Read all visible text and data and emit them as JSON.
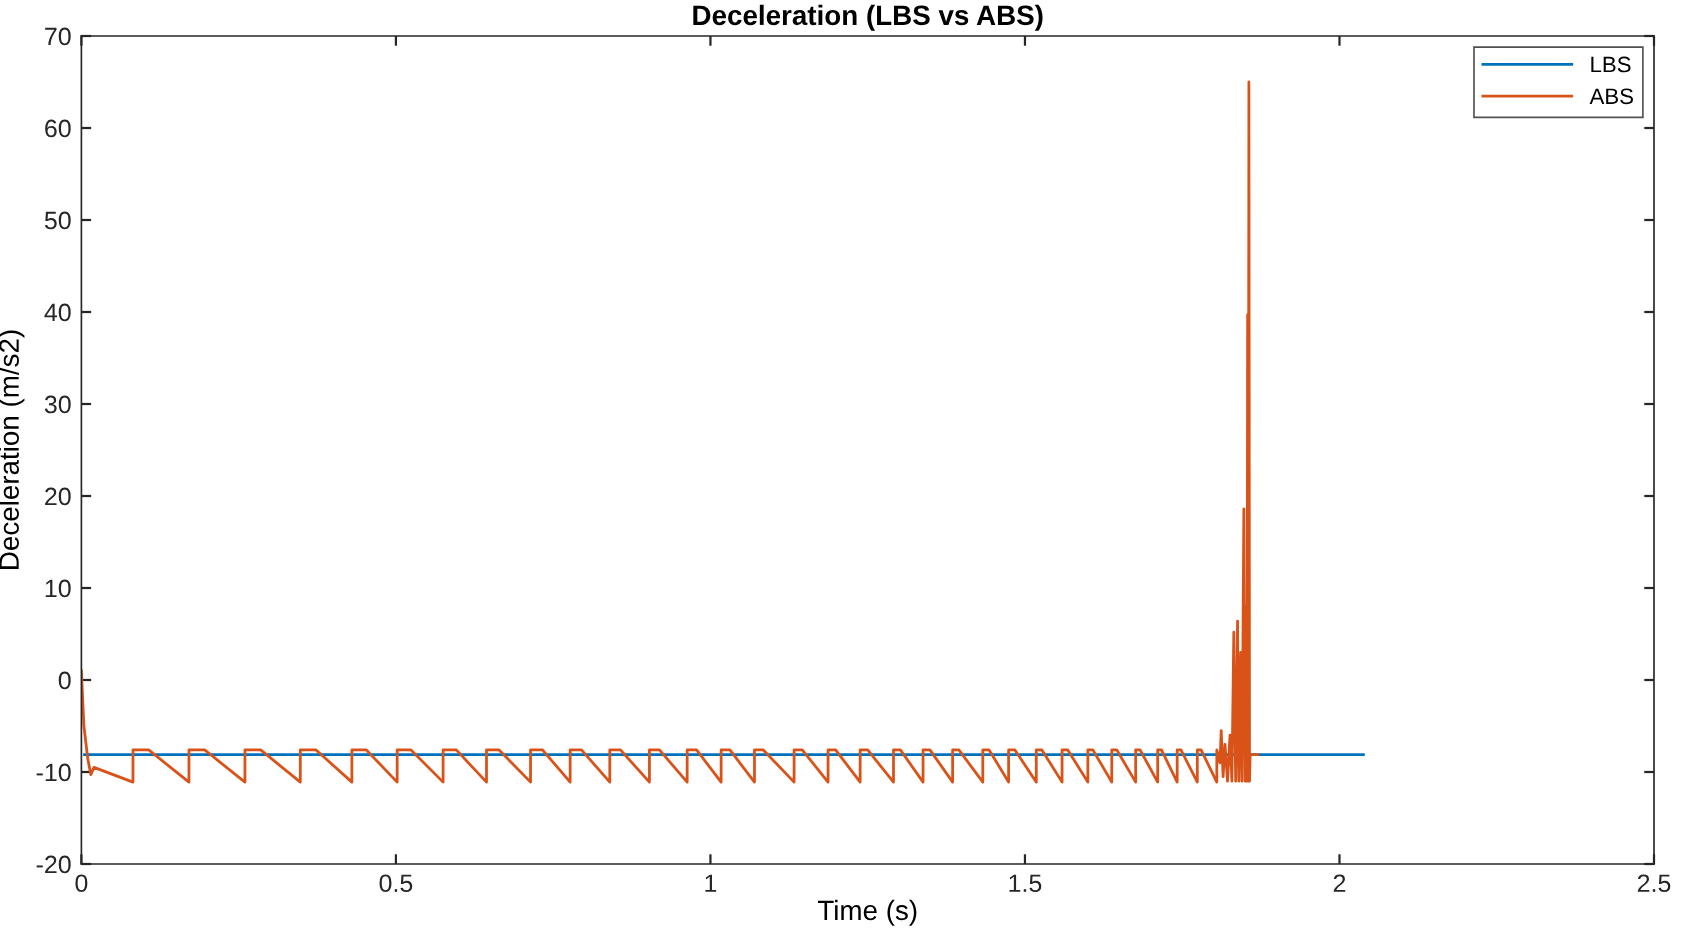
{
  "chart_data": {
    "type": "line",
    "title": "Deceleration (LBS vs ABS)",
    "xlabel": "Time (s)",
    "ylabel": "Deceleration (m/s2)",
    "xlim": [
      0,
      2.5
    ],
    "xticks": [
      0,
      0.5,
      1,
      1.5,
      2,
      2.5
    ],
    "ylim": [
      -20,
      70
    ],
    "yticks": [
      -20,
      -10,
      0,
      10,
      20,
      30,
      40,
      50,
      60,
      70
    ],
    "grid": false,
    "legend": "top right",
    "line_style": "solid",
    "marker": "none",
    "series": [
      {
        "name": "LBS",
        "color": "#0072bd",
        "x": [
          0.005,
          2.038
        ],
        "values": [
          -8.1,
          -8.1
        ]
      },
      {
        "name": "ABS",
        "color": "#d95319",
        "x": [
          0,
          0.004,
          0.01,
          0.015,
          0.02,
          0.082,
          0.082,
          0.107,
          0.171,
          0.171,
          0.196,
          0.26,
          0.26,
          0.285,
          0.348,
          0.348,
          0.373,
          0.43,
          0.43,
          0.453,
          0.502,
          0.502,
          0.524,
          0.575,
          0.575,
          0.596,
          0.644,
          0.644,
          0.664,
          0.714,
          0.714,
          0.733,
          0.777,
          0.777,
          0.795,
          0.84,
          0.84,
          0.857,
          0.903,
          0.903,
          0.919,
          0.963,
          0.963,
          0.978,
          1.017,
          1.017,
          1.031,
          1.07,
          1.07,
          1.084,
          1.133,
          1.133,
          1.146,
          1.187,
          1.187,
          1.199,
          1.238,
          1.238,
          1.25,
          1.291,
          1.291,
          1.302,
          1.338,
          1.338,
          1.349,
          1.385,
          1.385,
          1.395,
          1.433,
          1.433,
          1.443,
          1.474,
          1.474,
          1.484,
          1.518,
          1.518,
          1.527,
          1.559,
          1.559,
          1.568,
          1.6,
          1.6,
          1.608,
          1.638,
          1.638,
          1.646,
          1.676,
          1.676,
          1.683,
          1.711,
          1.711,
          1.717,
          1.742,
          1.742,
          1.748,
          1.774,
          1.774,
          1.78,
          1.805,
          1.805,
          1.81,
          1.812,
          1.815,
          1.818,
          1.822,
          1.826,
          1.829,
          1.832,
          1.835,
          1.838,
          1.84,
          1.843,
          1.845,
          1.848,
          1.85,
          1.852,
          1.853,
          1.854,
          1.855,
          1.856,
          1.857,
          1.858,
          1.87
        ],
        "values": [
          1,
          -5,
          -8.5,
          -10.3,
          -9.5,
          -11.1,
          -7.6,
          -7.6,
          -11.1,
          -7.6,
          -7.6,
          -11.1,
          -7.6,
          -7.6,
          -11.1,
          -7.6,
          -7.6,
          -11.1,
          -7.6,
          -7.6,
          -11.1,
          -7.6,
          -7.6,
          -11.1,
          -7.6,
          -7.6,
          -11.1,
          -7.6,
          -7.6,
          -11.1,
          -7.6,
          -7.6,
          -11.1,
          -7.6,
          -7.6,
          -11.1,
          -7.6,
          -7.6,
          -11.1,
          -7.6,
          -7.6,
          -11.1,
          -7.6,
          -7.6,
          -11.1,
          -7.6,
          -7.6,
          -11.1,
          -7.6,
          -7.6,
          -11.1,
          -7.6,
          -7.6,
          -11.1,
          -7.6,
          -7.6,
          -11.1,
          -7.6,
          -7.6,
          -11.1,
          -7.6,
          -7.6,
          -11.1,
          -7.6,
          -7.6,
          -11.1,
          -7.6,
          -7.6,
          -11.1,
          -7.6,
          -7.6,
          -11.1,
          -7.6,
          -7.6,
          -11.1,
          -7.6,
          -7.6,
          -11.1,
          -7.6,
          -7.6,
          -11.1,
          -7.6,
          -7.6,
          -11.1,
          -7.6,
          -7.6,
          -11.1,
          -7.6,
          -7.6,
          -11.1,
          -7.6,
          -7.6,
          -11.1,
          -7.6,
          -7.6,
          -11.1,
          -7.6,
          -7.6,
          -11.1,
          -7.6,
          -9,
          -5.5,
          -10.5,
          -7,
          -11,
          -6,
          -11,
          5.2,
          -11,
          6.4,
          -11,
          3,
          -11,
          18.6,
          -11,
          8,
          -11,
          39.7,
          -11,
          65,
          -11,
          -8.1,
          -8.1
        ]
      }
    ]
  }
}
